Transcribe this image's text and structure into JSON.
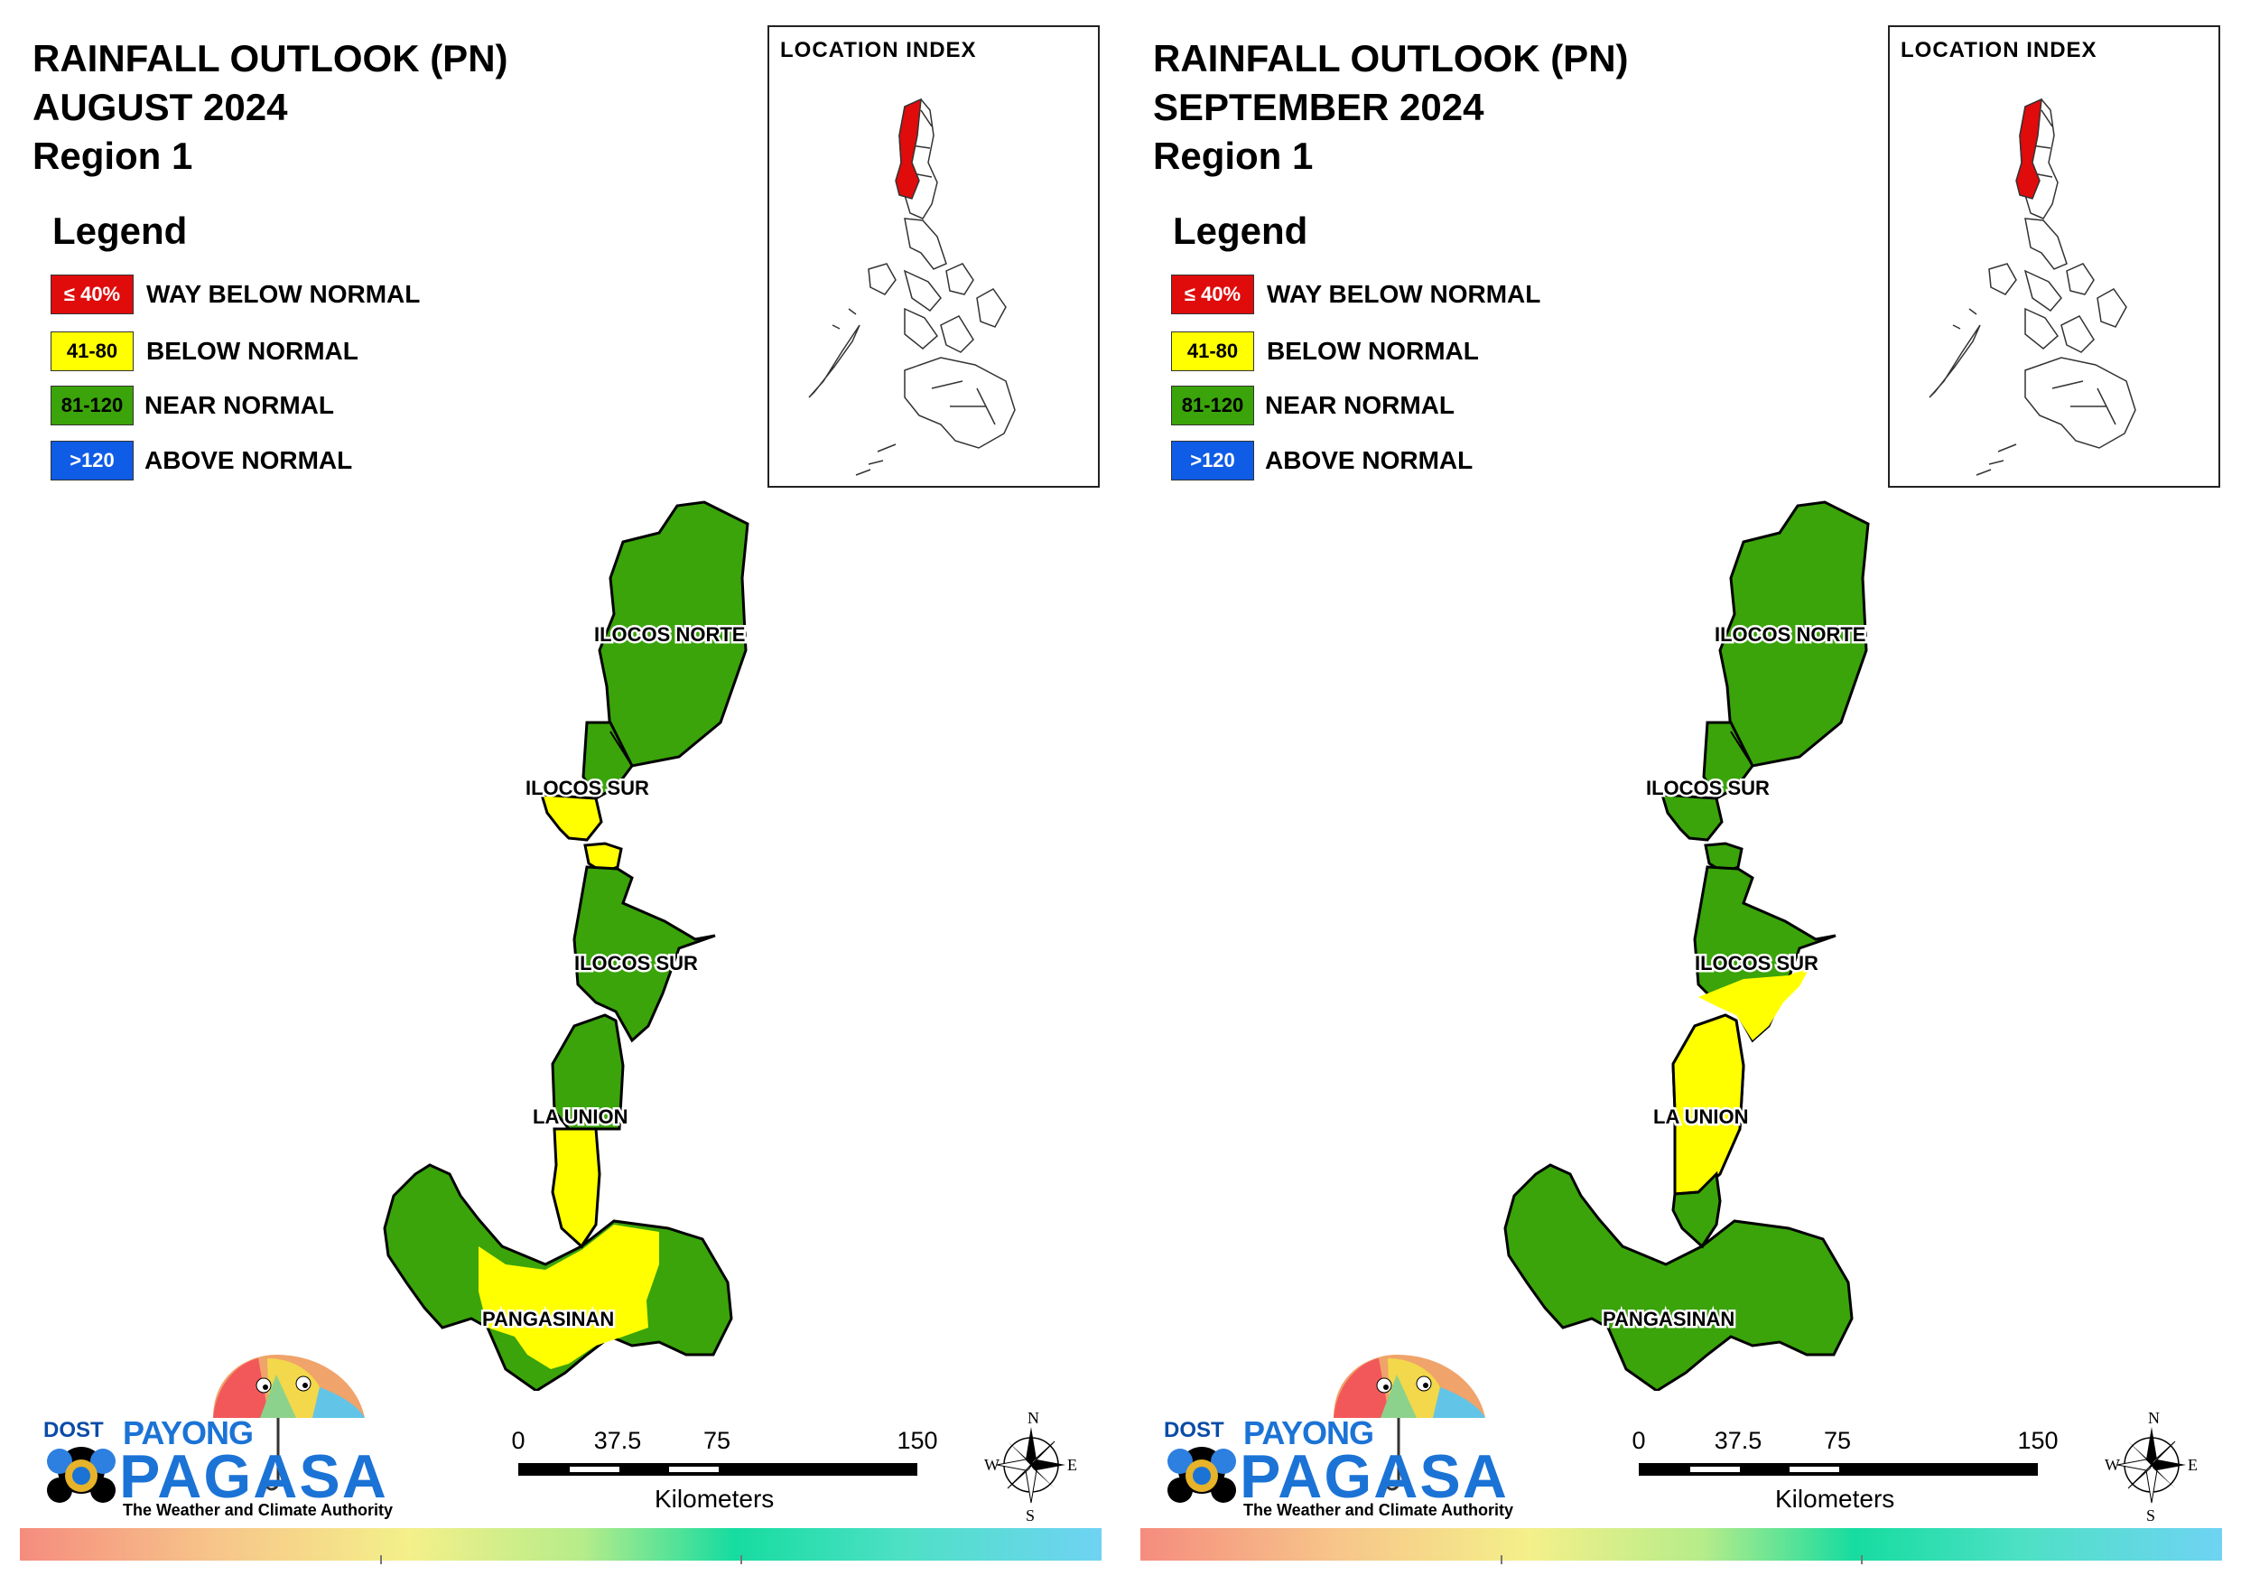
{
  "panels": [
    {
      "title_lines": [
        "RAINFALL OUTLOOK (PN)",
        "AUGUST 2024",
        "Region 1"
      ],
      "province_colors": {
        "north": "#3aa40a",
        "sur1": "#3aa40a",
        "sur2": "#3aa40a",
        "launion": "#3aa40a",
        "pang": "#3aa40a"
      },
      "yellow_areas": [
        "ilocos-sur-gap",
        "la-union-south",
        "pangasinan-central"
      ]
    },
    {
      "title_lines": [
        "RAINFALL OUTLOOK (PN)",
        "SEPTEMBER 2024",
        "Region 1"
      ],
      "province_colors": {
        "north": "#3aa40a",
        "sur1": "#3aa40a",
        "sur2": "#3aa40a",
        "launion": "#3aa40a",
        "pang": "#3aa40a"
      },
      "yellow_areas": [
        "ilocos-sur-south",
        "la-union-central"
      ]
    }
  ],
  "legend": {
    "title": "Legend",
    "items": [
      {
        "range": "≤ 40%",
        "label": "WAY BELOW NORMAL",
        "color": "#e00b0b",
        "text_color": "#ffffff"
      },
      {
        "range": "41-80",
        "label": "BELOW NORMAL",
        "color": "#ffff00",
        "text_color": "#000000"
      },
      {
        "range": "81-120",
        "label": "NEAR NORMAL",
        "color": "#3aa40a",
        "text_color": "#000000"
      },
      {
        "range": ">120",
        "label": "ABOVE NORMAL",
        "color": "#0f5ce6",
        "text_color": "#ffffff"
      }
    ]
  },
  "inset": {
    "title": "LOCATION INDEX",
    "highlight_color": "#e00b0b"
  },
  "provinces": {
    "ilocos_norte": "ILOCOS NORTE",
    "ilocos_sur_1": "ILOCOS SUR",
    "ilocos_sur_2": "ILOCOS SUR",
    "la_union": "LA UNION",
    "pangasinan": "PANGASINAN"
  },
  "scale_bar": {
    "ticks": [
      "0",
      "37.5",
      "75",
      "150"
    ],
    "unit": "Kilometers"
  },
  "compass": {
    "n": "N",
    "s": "S",
    "e": "E",
    "w": "W"
  },
  "logo": {
    "dost": "DOST",
    "payong": "PAYONG",
    "pagasa": "PAGASA",
    "tagline": "The Weather and Climate Authority"
  },
  "colors": {
    "near_normal": "#3aa40a",
    "below_normal": "#ffff00"
  }
}
